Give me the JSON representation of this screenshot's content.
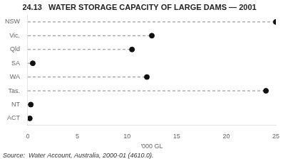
{
  "chart_data": {
    "type": "dot",
    "orientation": "horizontal",
    "title": "24.13   WATER STORAGE CAPACITY OF LARGE DAMS — 2001",
    "xlabel": "'000 GL",
    "categories": [
      "NSW",
      "Vic.",
      "Qld",
      "SA",
      "WA",
      "Tas.",
      "NT",
      "ACT"
    ],
    "values": [
      25.0,
      12.5,
      10.5,
      0.5,
      12.0,
      24.0,
      0.3,
      0.2
    ],
    "color": "#111111",
    "line_style": "dashed",
    "xlim": [
      0,
      25
    ],
    "xticks": [
      0,
      5,
      10,
      15,
      20,
      25
    ],
    "grid": false,
    "annotations": [
      "Source:  Water Account, Australia, 2000-01 (4610.0)."
    ]
  }
}
